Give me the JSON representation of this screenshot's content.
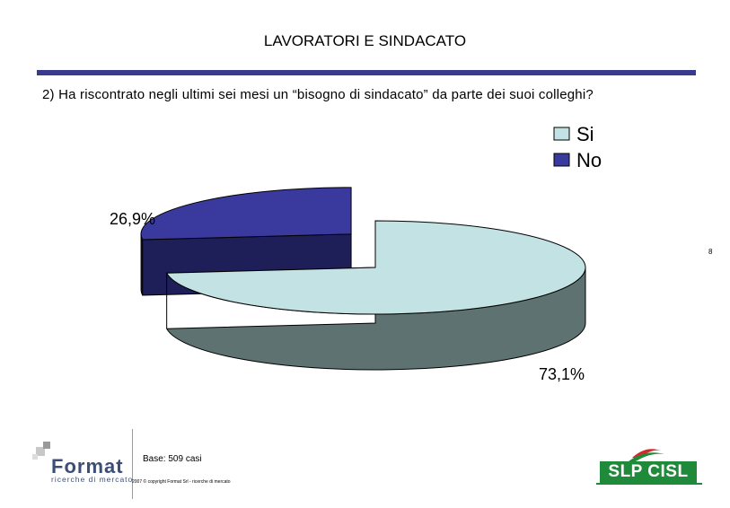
{
  "header": {
    "title": "LAVORATORI E SINDACATO",
    "question": "2) Ha riscontrato negli ultimi sei mesi un “bisogno di sindacato” da parte dei suoi colleghi?"
  },
  "page_number": "8",
  "footer": {
    "base": "Base: 509 casi",
    "copyright": "2007 © copyright Format Srl - ricerche di mercato",
    "format_logo": {
      "word": "Format",
      "sub": "ricerche di mercato"
    },
    "slp_logo": {
      "word": "SLP CISL"
    }
  },
  "chart_data": {
    "type": "pie",
    "variant": "3d-exploded",
    "categories": [
      "Si",
      "No"
    ],
    "values": [
      73.1,
      26.9
    ],
    "labels": [
      "73,1%",
      "26,9%"
    ],
    "colors": {
      "Si": {
        "top": "#c2e2e4",
        "side": "#5e7271"
      },
      "No": {
        "top": "#3a3a9e",
        "side": "#1e1e58"
      }
    },
    "legend": {
      "position": "top-right",
      "entries": [
        "Si",
        "No"
      ]
    }
  }
}
